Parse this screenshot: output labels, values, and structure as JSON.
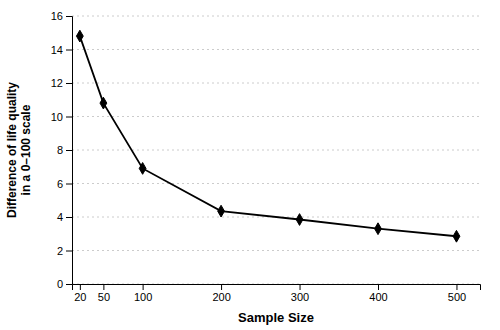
{
  "chart_data": {
    "type": "line",
    "x": [
      20,
      50,
      100,
      200,
      300,
      400,
      500
    ],
    "values": [
      14.8,
      10.8,
      6.9,
      4.35,
      3.85,
      3.3,
      2.85
    ],
    "xlabel": "Sample Size",
    "ylabel": "Difference of life quality\nin a 0–100 scale",
    "xlim": [
      10,
      530
    ],
    "ylim": [
      0,
      16
    ],
    "xticks": [
      20,
      50,
      100,
      200,
      300,
      400,
      500
    ],
    "yticks": [
      0,
      2,
      4,
      6,
      8,
      10,
      12,
      14,
      16
    ],
    "color": "#000000",
    "marker": "diamond",
    "grid": "y"
  }
}
